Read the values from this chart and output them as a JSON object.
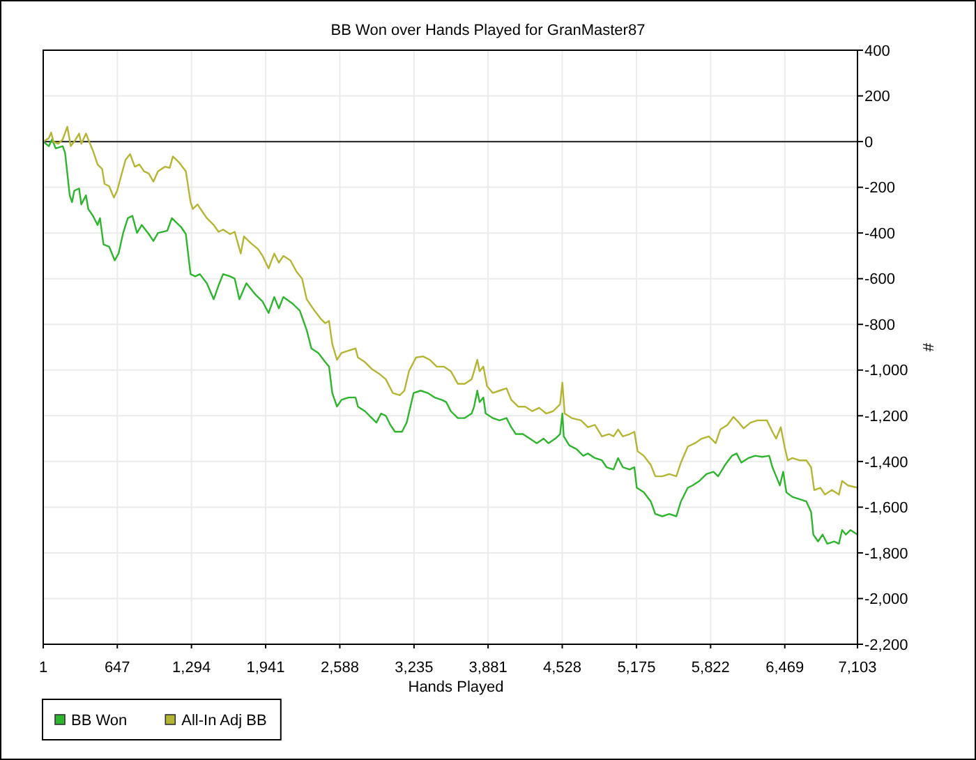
{
  "chart_data": {
    "type": "line",
    "title": "BB Won over Hands Played for GranMaster87",
    "xlabel": "Hands Played",
    "ylabel": "#",
    "xlim": [
      1,
      7103
    ],
    "xticks": [
      1,
      647,
      {
        "value": 1294,
        "label": "1,294"
      },
      {
        "value": 1941,
        "label": "1,941"
      },
      {
        "value": 2588,
        "label": "2,588"
      },
      {
        "value": 3235,
        "label": "3,235"
      },
      {
        "value": 3881,
        "label": "3,881"
      },
      {
        "value": 4528,
        "label": "4,528"
      },
      {
        "value": 5175,
        "label": "5,175"
      },
      {
        "value": 5822,
        "label": "5,822"
      },
      {
        "value": 6469,
        "label": "6,469"
      },
      {
        "value": 7103,
        "label": "7,103"
      }
    ],
    "ylim": [
      -2200,
      400
    ],
    "yticks": [
      400,
      200,
      0,
      -200,
      -400,
      -600,
      -800,
      {
        "value": -1000,
        "label": "-1,000"
      },
      {
        "value": -1200,
        "label": "-1,200"
      },
      {
        "value": -1400,
        "label": "-1,400"
      },
      {
        "value": -1600,
        "label": "-1,600"
      },
      {
        "value": -1800,
        "label": "-1,800"
      },
      {
        "value": -2000,
        "label": "-2,000"
      },
      {
        "value": -2200,
        "label": "-2,200"
      }
    ],
    "grid": true,
    "legend": "bottom left",
    "ref_lines": [
      {
        "axis": "y",
        "value": 0,
        "color": "#333333"
      }
    ],
    "series": [
      {
        "name": "BB Won",
        "color": "#2eb52e",
        "x": [
          1,
          50,
          78,
          110,
          171,
          192,
          232,
          252,
          272,
          314,
          333,
          374,
          394,
          435,
          475,
          496,
          527,
          576,
          625,
          658,
          698,
          739,
          779,
          819,
          861,
          922,
          962,
          1002,
          1083,
          1123,
          1205,
          1245,
          1286,
          1327,
          1367,
          1428,
          1488,
          1530,
          1570,
          1631,
          1671,
          1712,
          1773,
          1853,
          1914,
          1967,
          2016,
          2056,
          2096,
          2178,
          2239,
          2299,
          2340,
          2400,
          2461,
          2494,
          2522,
          2563,
          2603,
          2664,
          2725,
          2746,
          2807,
          2867,
          2907,
          2948,
          2989,
          3029,
          3069,
          3130,
          3171,
          3232,
          3293,
          3354,
          3415,
          3475,
          3516,
          3556,
          3617,
          3677,
          3738,
          3759,
          3787,
          3807,
          3840,
          3860,
          3921,
          3981,
          4042,
          4083,
          4123,
          4184,
          4245,
          4306,
          4366,
          4407,
          4468,
          4509,
          4529,
          4541,
          4590,
          4650,
          4711,
          4752,
          4813,
          4874,
          4914,
          4975,
          5015,
          5056,
          5117,
          5157,
          5178,
          5239,
          5300,
          5340,
          5401,
          5462,
          5523,
          5563,
          5623,
          5664,
          5725,
          5786,
          5847,
          5887,
          5948,
          6008,
          6049,
          6090,
          6151,
          6212,
          6272,
          6333,
          6361,
          6394,
          6426,
          6455,
          6483,
          6535,
          6596,
          6657,
          6698,
          6718,
          6759,
          6799,
          6839,
          6900,
          6941,
          6969,
          7002,
          7042,
          7103
        ],
        "values": [
          0,
          -20,
          10,
          -30,
          -20,
          -50,
          -235,
          -265,
          -215,
          -205,
          -275,
          -235,
          -295,
          -325,
          -365,
          -335,
          -450,
          -460,
          -520,
          -490,
          -400,
          -335,
          -325,
          -400,
          -365,
          -405,
          -435,
          -400,
          -390,
          -335,
          -375,
          -405,
          -580,
          -590,
          -580,
          -620,
          -690,
          -630,
          -580,
          -590,
          -600,
          -690,
          -620,
          -670,
          -700,
          -750,
          -680,
          -730,
          -680,
          -710,
          -740,
          -825,
          -905,
          -925,
          -965,
          -985,
          -1100,
          -1160,
          -1130,
          -1120,
          -1120,
          -1160,
          -1180,
          -1210,
          -1230,
          -1190,
          -1200,
          -1240,
          -1270,
          -1270,
          -1230,
          -1100,
          -1090,
          -1100,
          -1120,
          -1130,
          -1140,
          -1180,
          -1210,
          -1210,
          -1190,
          -1160,
          -1090,
          -1140,
          -1120,
          -1190,
          -1210,
          -1220,
          -1210,
          -1250,
          -1280,
          -1280,
          -1300,
          -1320,
          -1300,
          -1320,
          -1300,
          -1280,
          -1190,
          -1290,
          -1330,
          -1345,
          -1375,
          -1365,
          -1385,
          -1395,
          -1425,
          -1435,
          -1385,
          -1425,
          -1435,
          -1425,
          -1515,
          -1535,
          -1575,
          -1630,
          -1640,
          -1630,
          -1640,
          -1575,
          -1515,
          -1505,
          -1485,
          -1455,
          -1445,
          -1465,
          -1415,
          -1375,
          -1365,
          -1405,
          -1385,
          -1375,
          -1380,
          -1375,
          -1425,
          -1465,
          -1505,
          -1445,
          -1535,
          -1555,
          -1565,
          -1575,
          -1620,
          -1720,
          -1750,
          -1720,
          -1760,
          -1750,
          -1760,
          -1700,
          -1720,
          -1700,
          -1720
        ]
      },
      {
        "name": "All-In Adj BB",
        "color": "#b5b534",
        "x": [
          1,
          50,
          70,
          90,
          131,
          171,
          211,
          241,
          272,
          314,
          333,
          374,
          402,
          435,
          475,
          515,
          536,
          576,
          617,
          646,
          678,
          719,
          759,
          800,
          840,
          880,
          922,
          962,
          1002,
          1063,
          1104,
          1132,
          1184,
          1245,
          1286,
          1306,
          1347,
          1387,
          1428,
          1488,
          1530,
          1570,
          1631,
          1671,
          1724,
          1752,
          1813,
          1874,
          1914,
          1967,
          2016,
          2056,
          2096,
          2157,
          2211,
          2259,
          2299,
          2360,
          2421,
          2461,
          2494,
          2522,
          2563,
          2603,
          2664,
          2725,
          2746,
          2807,
          2867,
          2928,
          2989,
          3050,
          3111,
          3151,
          3191,
          3252,
          3313,
          3373,
          3434,
          3495,
          3556,
          3617,
          3677,
          3738,
          3759,
          3787,
          3807,
          3840,
          3872,
          3921,
          3981,
          4042,
          4083,
          4144,
          4205,
          4266,
          4326,
          4387,
          4448,
          4509,
          4529,
          4549,
          4610,
          4691,
          4752,
          4813,
          4874,
          4935,
          4975,
          5015,
          5056,
          5117,
          5157,
          5185,
          5239,
          5300,
          5340,
          5401,
          5462,
          5523,
          5563,
          5623,
          5684,
          5745,
          5806,
          5866,
          5907,
          5968,
          6021,
          6069,
          6109,
          6170,
          6231,
          6313,
          6361,
          6394,
          6434,
          6467,
          6495,
          6535,
          6596,
          6657,
          6698,
          6726,
          6779,
          6819,
          6880,
          6941,
          6969,
          7021,
          7103
        ],
        "values": [
          0,
          15,
          40,
          0,
          -10,
          10,
          65,
          -20,
          0,
          35,
          -10,
          35,
          0,
          -40,
          -100,
          -120,
          -185,
          -195,
          -245,
          -215,
          -155,
          -80,
          -55,
          -110,
          -100,
          -130,
          -140,
          -175,
          -130,
          -110,
          -115,
          -65,
          -90,
          -130,
          -265,
          -295,
          -275,
          -305,
          -335,
          -365,
          -395,
          -385,
          -405,
          -395,
          -490,
          -415,
          -445,
          -470,
          -500,
          -555,
          -490,
          -530,
          -500,
          -520,
          -570,
          -600,
          -690,
          -735,
          -775,
          -795,
          -785,
          -885,
          -955,
          -925,
          -915,
          -905,
          -945,
          -965,
          -995,
          -1015,
          -1040,
          -1100,
          -1110,
          -1090,
          -1005,
          -945,
          -940,
          -955,
          -985,
          -985,
          -1005,
          -1060,
          -1060,
          -1040,
          -1005,
          -955,
          -1005,
          -985,
          -1070,
          -1100,
          -1090,
          -1080,
          -1130,
          -1160,
          -1160,
          -1180,
          -1165,
          -1190,
          -1180,
          -1150,
          -1055,
          -1190,
          -1210,
          -1220,
          -1250,
          -1240,
          -1290,
          -1280,
          -1290,
          -1260,
          -1290,
          -1280,
          -1270,
          -1355,
          -1375,
          -1415,
          -1465,
          -1465,
          -1455,
          -1465,
          -1405,
          -1335,
          -1320,
          -1300,
          -1290,
          -1320,
          -1260,
          -1240,
          -1205,
          -1230,
          -1255,
          -1230,
          -1220,
          -1220,
          -1270,
          -1300,
          -1250,
          -1335,
          -1395,
          -1385,
          -1395,
          -1395,
          -1425,
          -1525,
          -1515,
          -1545,
          -1525,
          -1545,
          -1485,
          -1505,
          -1515
        ]
      }
    ]
  }
}
